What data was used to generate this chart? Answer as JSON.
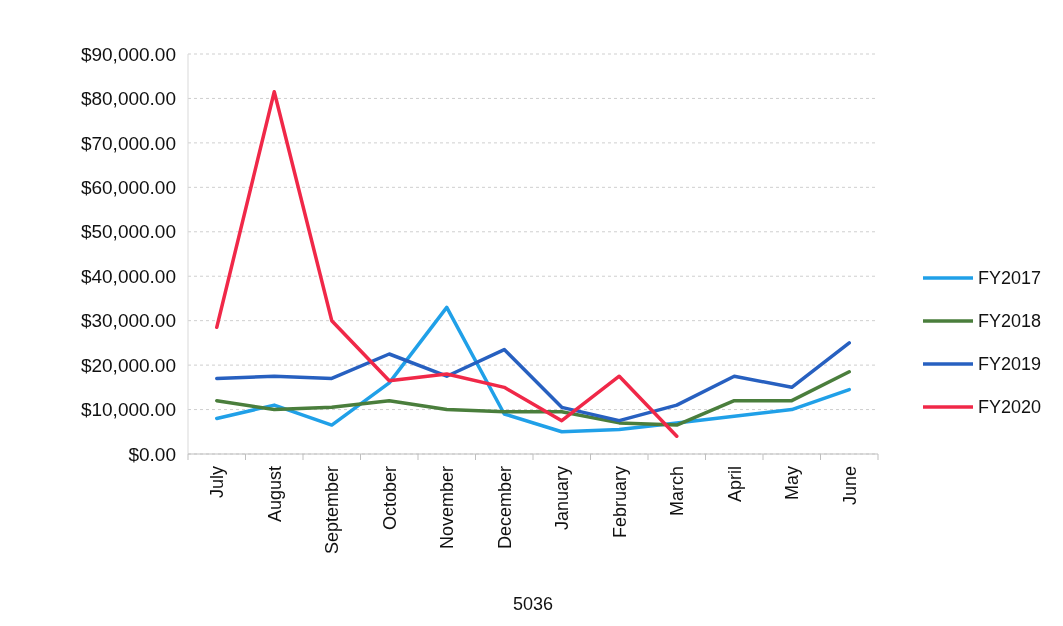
{
  "chart_data": {
    "type": "line",
    "xlabel": "5036",
    "categories": [
      "July",
      "August",
      "September",
      "October",
      "November",
      "December",
      "January",
      "February",
      "March",
      "April",
      "May",
      "June"
    ],
    "series": [
      {
        "name": "FY2017",
        "color": "#20a0e8",
        "values": [
          8000,
          11000,
          6500,
          16000,
          33000,
          9000,
          5000,
          5500,
          7000,
          8500,
          10000,
          14500
        ]
      },
      {
        "name": "FY2018",
        "color": "#4a7e3c",
        "values": [
          12000,
          10000,
          10500,
          12000,
          10000,
          9500,
          9500,
          7000,
          6500,
          12000,
          12000,
          18500
        ]
      },
      {
        "name": "FY2019",
        "color": "#2760c0",
        "values": [
          17000,
          17500,
          17000,
          22500,
          17500,
          23500,
          10500,
          7500,
          11000,
          17500,
          15000,
          25000
        ]
      },
      {
        "name": "FY2020",
        "color": "#f02848",
        "values": [
          28500,
          81500,
          30000,
          16500,
          18000,
          15000,
          7500,
          17500,
          4000,
          null,
          null,
          null
        ]
      }
    ],
    "ylim": [
      0,
      90000
    ],
    "yticks": [
      {
        "value": 0,
        "label": "$0.00"
      },
      {
        "value": 10000,
        "label": "$10,000.00"
      },
      {
        "value": 20000,
        "label": "$20,000.00"
      },
      {
        "value": 30000,
        "label": "$30,000.00"
      },
      {
        "value": 40000,
        "label": "$40,000.00"
      },
      {
        "value": 50000,
        "label": "$50,000.00"
      },
      {
        "value": 60000,
        "label": "$60,000.00"
      },
      {
        "value": 70000,
        "label": "$70,000.00"
      },
      {
        "value": 80000,
        "label": "$80,000.00"
      },
      {
        "value": 90000,
        "label": "$90,000.00"
      }
    ],
    "grid": "y",
    "legend": "right",
    "line_style": "solid",
    "marker": "none"
  }
}
